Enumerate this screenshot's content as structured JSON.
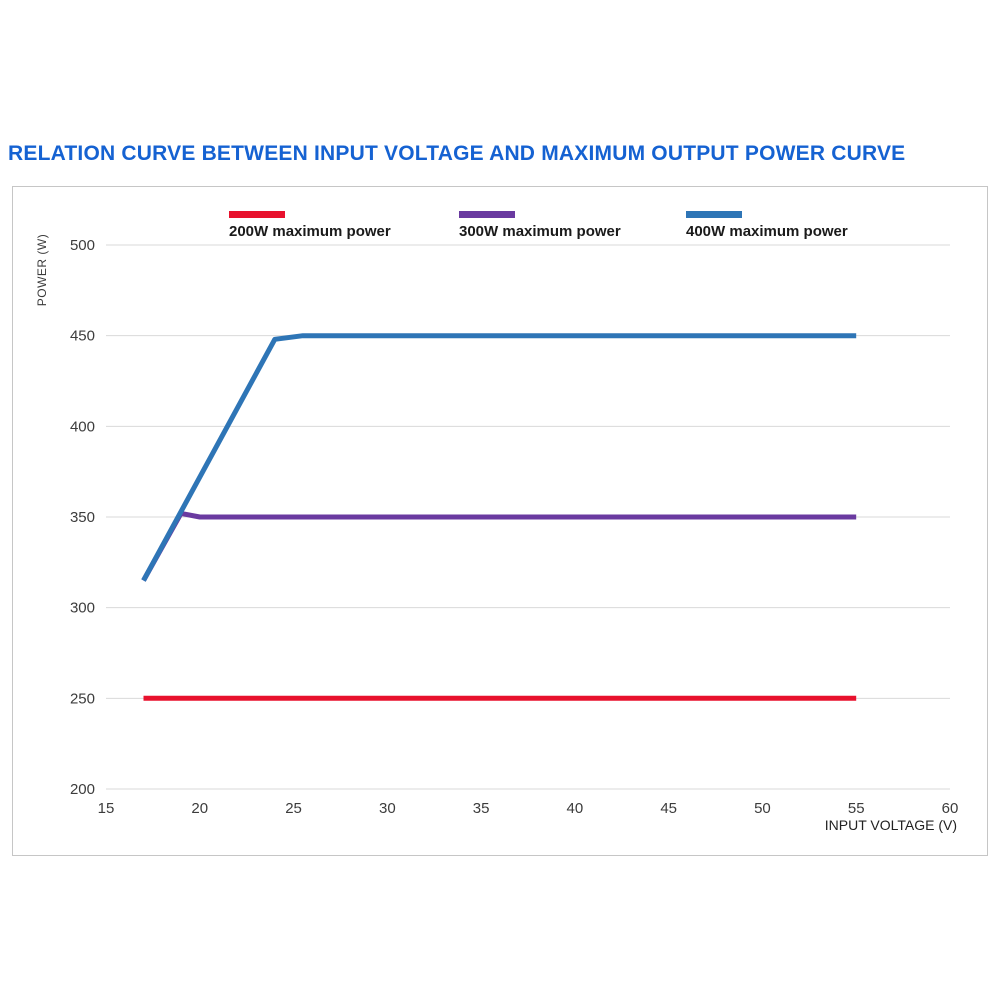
{
  "page": {
    "title": "RELATION CURVE BETWEEN INPUT VOLTAGE AND MAXIMUM OUTPUT POWER CURVE"
  },
  "colors": {
    "title": "#1562d2",
    "grid": "#d9d9d9",
    "border": "#c6c6c6",
    "axis_text": "#3c3c3c"
  },
  "chart_data": {
    "type": "line",
    "title": "RELATION CURVE BETWEEN INPUT VOLTAGE AND MAXIMUM OUTPUT POWER CURVE",
    "xlabel": "INPUT VOLTAGE (V)",
    "ylabel": "POWER (W)",
    "xlim": [
      15,
      60
    ],
    "ylim": [
      200,
      500
    ],
    "x_ticks": [
      15,
      20,
      25,
      30,
      35,
      40,
      45,
      50,
      55,
      60
    ],
    "y_ticks": [
      200,
      250,
      300,
      350,
      400,
      450,
      500
    ],
    "grid": true,
    "legend_position": "top",
    "series": [
      {
        "name": "200W maximum power",
        "color": "#e8112d",
        "points": [
          [
            17,
            250
          ],
          [
            55,
            250
          ]
        ]
      },
      {
        "name": "300W maximum power",
        "color": "#6a3aa0",
        "points": [
          [
            17,
            315
          ],
          [
            19,
            352
          ],
          [
            20,
            350
          ],
          [
            55,
            350
          ]
        ]
      },
      {
        "name": "400W maximum power",
        "color": "#2e75b6",
        "points": [
          [
            17,
            315
          ],
          [
            24,
            448
          ],
          [
            25.5,
            450
          ],
          [
            55,
            450
          ]
        ]
      }
    ]
  }
}
